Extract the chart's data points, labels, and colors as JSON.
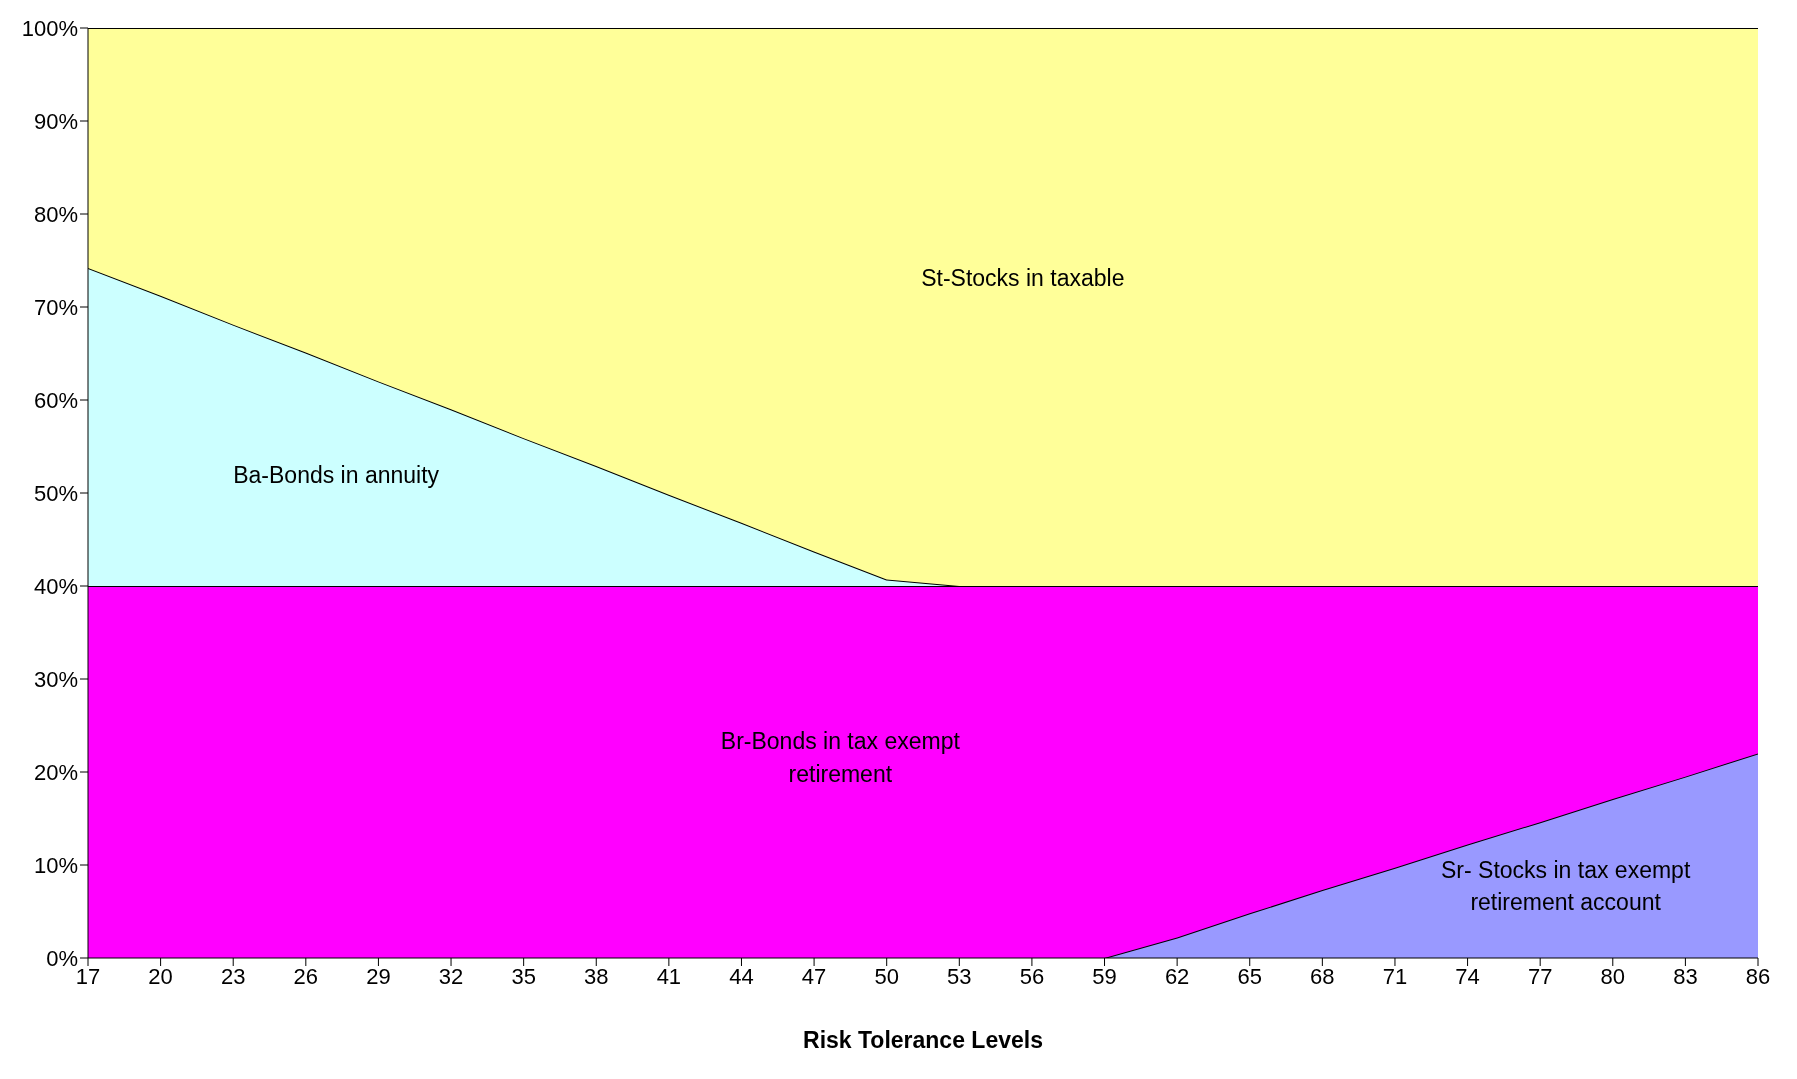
{
  "chart_data": {
    "type": "area",
    "stacked": true,
    "xlabel": "Risk Tolerance Levels",
    "x": [
      17,
      20,
      23,
      26,
      29,
      32,
      35,
      38,
      41,
      44,
      47,
      50,
      53,
      56,
      59,
      62,
      65,
      68,
      71,
      74,
      77,
      80,
      83,
      86
    ],
    "series": [
      {
        "name": "Sr- Stocks in tax exempt retirement account",
        "color": "#9999ff",
        "values": [
          0,
          0,
          0,
          0,
          0,
          0,
          0,
          0,
          0,
          0,
          0,
          0,
          0,
          0,
          0,
          2.2,
          4.8,
          7.3,
          9.7,
          12.2,
          14.6,
          17.1,
          19.5,
          22
        ]
      },
      {
        "name": "Br-Bonds in tax exempt retirement",
        "color": "#ff00ff",
        "values": [
          40,
          40,
          40,
          40,
          40,
          40,
          40,
          40,
          40,
          40,
          40,
          40,
          40,
          40,
          40,
          37.8,
          35.2,
          32.7,
          30.3,
          27.8,
          25.4,
          22.9,
          20.5,
          18
        ]
      },
      {
        "name": "Ba-Bonds in annuity",
        "color": "#ccffff",
        "values": [
          34.2,
          31.2,
          28.1,
          25.1,
          22,
          19,
          15.9,
          12.9,
          9.8,
          6.8,
          3.7,
          0.7,
          0,
          0,
          0,
          0,
          0,
          0,
          0,
          0,
          0,
          0,
          0,
          0
        ]
      },
      {
        "name": "St-Stocks in taxable",
        "color": "#ffff99",
        "values": [
          25.8,
          28.8,
          31.9,
          34.9,
          38,
          41,
          44.1,
          47.1,
          50.2,
          53.2,
          56.3,
          59.3,
          60,
          60,
          60,
          60,
          60,
          60,
          60,
          60,
          60,
          60,
          60,
          60
        ]
      }
    ],
    "xlim": [
      17,
      86
    ],
    "xticks": [
      17,
      20,
      23,
      26,
      29,
      32,
      35,
      38,
      41,
      44,
      47,
      50,
      53,
      56,
      59,
      62,
      65,
      68,
      71,
      74,
      77,
      80,
      83,
      86
    ],
    "ylim": [
      0,
      100
    ],
    "yticks": [
      {
        "value": 0,
        "label": "0%"
      },
      {
        "value": 10,
        "label": "10%"
      },
      {
        "value": 20,
        "label": "20%"
      },
      {
        "value": 30,
        "label": "30%"
      },
      {
        "value": 40,
        "label": "40%"
      },
      {
        "value": 50,
        "label": "50%"
      },
      {
        "value": 60,
        "label": "60%"
      },
      {
        "value": 70,
        "label": "70%"
      },
      {
        "value": 80,
        "label": "80%"
      },
      {
        "value": 90,
        "label": "90%"
      },
      {
        "value": 100,
        "label": "100%"
      }
    ],
    "grid": false,
    "legend": false
  }
}
